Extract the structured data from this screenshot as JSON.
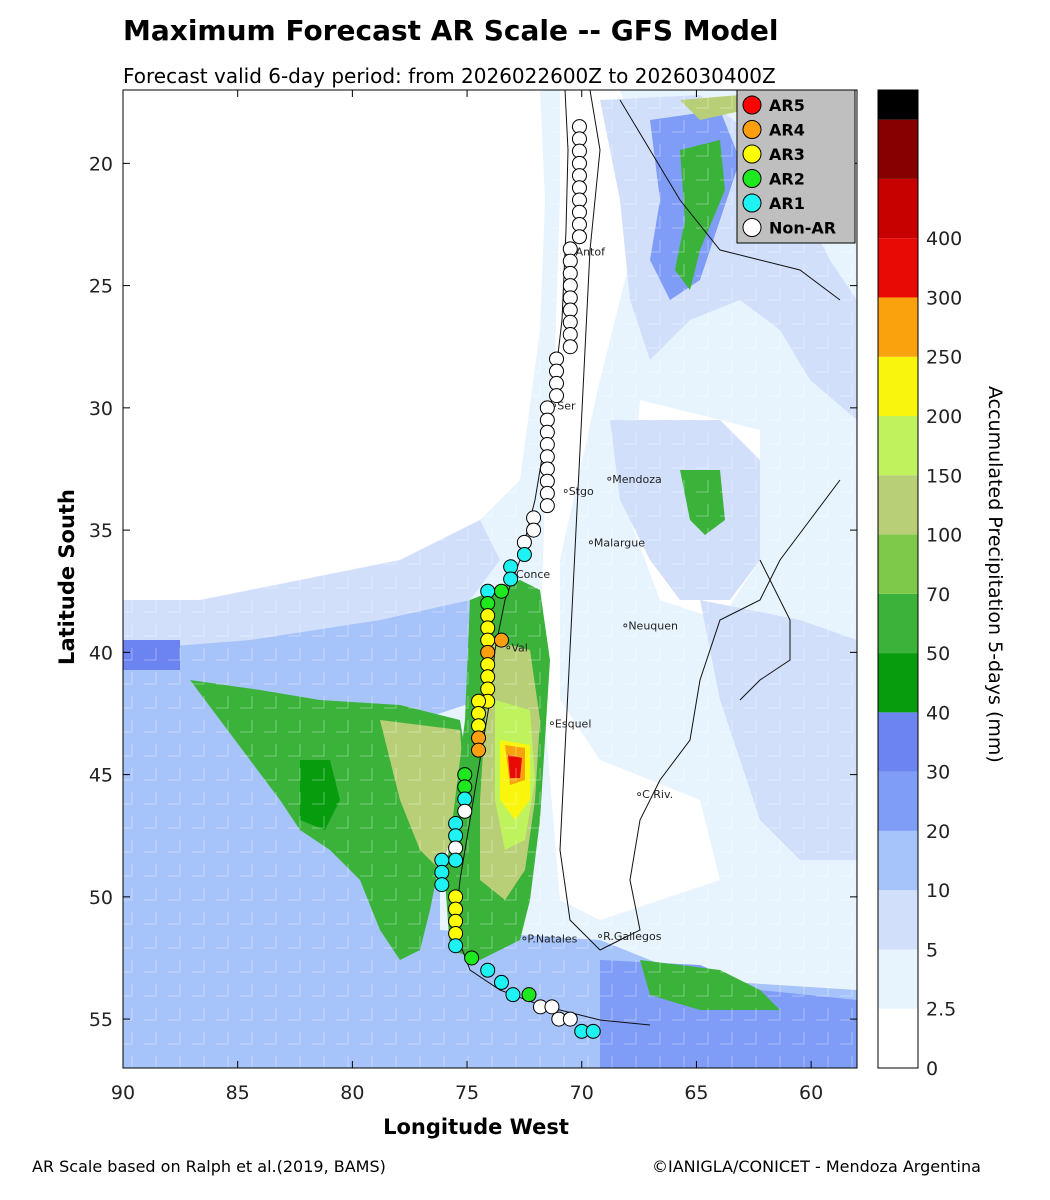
{
  "title": "Maximum Forecast AR Scale -- GFS Model",
  "subtitle": "Forecast valid 6-day period: from 2026022600Z to 2026030400Z",
  "axes": {
    "xlabel": "Longitude West",
    "ylabel": "Latitude South",
    "x_ticks": [
      "90",
      "85",
      "80",
      "75",
      "70",
      "65",
      "60"
    ],
    "y_ticks": [
      "20",
      "25",
      "30",
      "35",
      "40",
      "45",
      "50",
      "55"
    ],
    "xlim": [
      90,
      58
    ],
    "ylim": [
      17,
      57
    ]
  },
  "colorbar": {
    "label": "Accumulated Precipitation 5-days (mm)",
    "ticks": [
      "0",
      "2.5",
      "5",
      "10",
      "20",
      "30",
      "40",
      "50",
      "70",
      "100",
      "150",
      "200",
      "250",
      "300",
      "400"
    ],
    "colors": [
      "#ffffff",
      "#e8f4fd",
      "#d2dffb",
      "#a6c3fa",
      "#7f9cf7",
      "#6b84f0",
      "#069c0e",
      "#3bb33b",
      "#7ec84a",
      "#b9cf77",
      "#bef35d",
      "#f9f50c",
      "#f9a20d",
      "#e80a04",
      "#c70000",
      "#860000",
      "#000000"
    ]
  },
  "legend": {
    "items": [
      {
        "label": "AR5",
        "color": "#ff0000"
      },
      {
        "label": "AR4",
        "color": "#ff9f0f"
      },
      {
        "label": "AR3",
        "color": "#ffff00"
      },
      {
        "label": "AR2",
        "color": "#1ee81e"
      },
      {
        "label": "AR1",
        "color": "#1ef2f2"
      },
      {
        "label": "Non-AR",
        "color": "#ffffff"
      }
    ]
  },
  "cities": [
    {
      "name": "Antof",
      "lon": 70.4,
      "lat": 23.6
    },
    {
      "name": "Ser",
      "lon": 71.2,
      "lat": 29.9
    },
    {
      "name": "Mendoza",
      "lon": 68.8,
      "lat": 32.9
    },
    {
      "name": "Stgo",
      "lon": 70.7,
      "lat": 33.4
    },
    {
      "name": "Malargue",
      "lon": 69.6,
      "lat": 35.5
    },
    {
      "name": "Conce",
      "lon": 73.0,
      "lat": 36.8
    },
    {
      "name": "Neuquen",
      "lon": 68.1,
      "lat": 38.9
    },
    {
      "name": "Val",
      "lon": 73.2,
      "lat": 39.8
    },
    {
      "name": "Esquel",
      "lon": 71.3,
      "lat": 42.9
    },
    {
      "name": "C.Riv.",
      "lon": 67.5,
      "lat": 45.8
    },
    {
      "name": "P.Natales",
      "lon": 72.5,
      "lat": 51.7
    },
    {
      "name": "R.Gallegos",
      "lon": 69.2,
      "lat": 51.6
    }
  ],
  "chart_data": {
    "type": "scatter",
    "series_points": [
      {
        "lon": 70.1,
        "lat": 18.5,
        "cat": "Non-AR"
      },
      {
        "lon": 70.1,
        "lat": 19.0,
        "cat": "Non-AR"
      },
      {
        "lon": 70.1,
        "lat": 19.5,
        "cat": "Non-AR"
      },
      {
        "lon": 70.1,
        "lat": 20.0,
        "cat": "Non-AR"
      },
      {
        "lon": 70.1,
        "lat": 20.5,
        "cat": "Non-AR"
      },
      {
        "lon": 70.1,
        "lat": 21.0,
        "cat": "Non-AR"
      },
      {
        "lon": 70.1,
        "lat": 21.5,
        "cat": "Non-AR"
      },
      {
        "lon": 70.1,
        "lat": 22.0,
        "cat": "Non-AR"
      },
      {
        "lon": 70.1,
        "lat": 22.5,
        "cat": "Non-AR"
      },
      {
        "lon": 70.1,
        "lat": 23.0,
        "cat": "Non-AR"
      },
      {
        "lon": 70.5,
        "lat": 23.5,
        "cat": "Non-AR"
      },
      {
        "lon": 70.5,
        "lat": 24.0,
        "cat": "Non-AR"
      },
      {
        "lon": 70.5,
        "lat": 24.5,
        "cat": "Non-AR"
      },
      {
        "lon": 70.5,
        "lat": 25.0,
        "cat": "Non-AR"
      },
      {
        "lon": 70.5,
        "lat": 25.5,
        "cat": "Non-AR"
      },
      {
        "lon": 70.5,
        "lat": 26.0,
        "cat": "Non-AR"
      },
      {
        "lon": 70.5,
        "lat": 26.5,
        "cat": "Non-AR"
      },
      {
        "lon": 70.5,
        "lat": 27.0,
        "cat": "Non-AR"
      },
      {
        "lon": 70.5,
        "lat": 27.5,
        "cat": "Non-AR"
      },
      {
        "lon": 71.1,
        "lat": 28.0,
        "cat": "Non-AR"
      },
      {
        "lon": 71.1,
        "lat": 28.5,
        "cat": "Non-AR"
      },
      {
        "lon": 71.1,
        "lat": 29.0,
        "cat": "Non-AR"
      },
      {
        "lon": 71.1,
        "lat": 29.5,
        "cat": "Non-AR"
      },
      {
        "lon": 71.5,
        "lat": 30.0,
        "cat": "Non-AR"
      },
      {
        "lon": 71.5,
        "lat": 30.5,
        "cat": "Non-AR"
      },
      {
        "lon": 71.5,
        "lat": 31.0,
        "cat": "Non-AR"
      },
      {
        "lon": 71.5,
        "lat": 31.5,
        "cat": "Non-AR"
      },
      {
        "lon": 71.5,
        "lat": 32.0,
        "cat": "Non-AR"
      },
      {
        "lon": 71.5,
        "lat": 32.5,
        "cat": "Non-AR"
      },
      {
        "lon": 71.5,
        "lat": 33.0,
        "cat": "Non-AR"
      },
      {
        "lon": 71.5,
        "lat": 33.5,
        "cat": "Non-AR"
      },
      {
        "lon": 71.5,
        "lat": 34.0,
        "cat": "Non-AR"
      },
      {
        "lon": 72.1,
        "lat": 34.5,
        "cat": "Non-AR"
      },
      {
        "lon": 72.1,
        "lat": 35.0,
        "cat": "Non-AR"
      },
      {
        "lon": 72.5,
        "lat": 35.5,
        "cat": "Non-AR"
      },
      {
        "lon": 72.5,
        "lat": 36.0,
        "cat": "AR1"
      },
      {
        "lon": 73.1,
        "lat": 36.5,
        "cat": "AR1"
      },
      {
        "lon": 73.1,
        "lat": 37.0,
        "cat": "AR1"
      },
      {
        "lon": 73.5,
        "lat": 37.5,
        "cat": "AR2"
      },
      {
        "lon": 74.1,
        "lat": 37.5,
        "cat": "AR1"
      },
      {
        "lon": 74.1,
        "lat": 38.0,
        "cat": "AR2"
      },
      {
        "lon": 74.1,
        "lat": 38.5,
        "cat": "AR3"
      },
      {
        "lon": 74.1,
        "lat": 39.0,
        "cat": "AR3"
      },
      {
        "lon": 74.1,
        "lat": 39.5,
        "cat": "AR3"
      },
      {
        "lon": 73.5,
        "lat": 39.5,
        "cat": "AR4"
      },
      {
        "lon": 74.1,
        "lat": 40.0,
        "cat": "AR4"
      },
      {
        "lon": 74.1,
        "lat": 40.5,
        "cat": "AR3"
      },
      {
        "lon": 74.1,
        "lat": 41.0,
        "cat": "AR3"
      },
      {
        "lon": 74.1,
        "lat": 41.5,
        "cat": "AR3"
      },
      {
        "lon": 74.1,
        "lat": 42.0,
        "cat": "AR3"
      },
      {
        "lon": 74.5,
        "lat": 42.0,
        "cat": "AR3"
      },
      {
        "lon": 74.5,
        "lat": 42.5,
        "cat": "AR3"
      },
      {
        "lon": 74.5,
        "lat": 43.0,
        "cat": "AR3"
      },
      {
        "lon": 74.5,
        "lat": 43.5,
        "cat": "AR4"
      },
      {
        "lon": 74.5,
        "lat": 44.0,
        "cat": "AR4"
      },
      {
        "lon": 75.1,
        "lat": 45.0,
        "cat": "AR2"
      },
      {
        "lon": 75.1,
        "lat": 45.5,
        "cat": "AR2"
      },
      {
        "lon": 75.1,
        "lat": 46.0,
        "cat": "AR1"
      },
      {
        "lon": 75.1,
        "lat": 46.5,
        "cat": "Non-AR"
      },
      {
        "lon": 75.5,
        "lat": 47.0,
        "cat": "AR1"
      },
      {
        "lon": 75.5,
        "lat": 47.5,
        "cat": "AR1"
      },
      {
        "lon": 75.5,
        "lat": 48.0,
        "cat": "Non-AR"
      },
      {
        "lon": 75.5,
        "lat": 48.5,
        "cat": "AR1"
      },
      {
        "lon": 76.1,
        "lat": 48.5,
        "cat": "AR1"
      },
      {
        "lon": 76.1,
        "lat": 49.0,
        "cat": "AR1"
      },
      {
        "lon": 76.1,
        "lat": 49.5,
        "cat": "AR1"
      },
      {
        "lon": 75.5,
        "lat": 50.0,
        "cat": "AR3"
      },
      {
        "lon": 75.5,
        "lat": 50.5,
        "cat": "AR3"
      },
      {
        "lon": 75.5,
        "lat": 51.0,
        "cat": "AR3"
      },
      {
        "lon": 75.5,
        "lat": 51.5,
        "cat": "AR3"
      },
      {
        "lon": 75.5,
        "lat": 52.0,
        "cat": "AR1"
      },
      {
        "lon": 74.8,
        "lat": 52.5,
        "cat": "AR2"
      },
      {
        "lon": 74.1,
        "lat": 53.0,
        "cat": "AR1"
      },
      {
        "lon": 73.5,
        "lat": 53.5,
        "cat": "AR1"
      },
      {
        "lon": 73.0,
        "lat": 54.0,
        "cat": "AR1"
      },
      {
        "lon": 72.3,
        "lat": 54.0,
        "cat": "AR2"
      },
      {
        "lon": 71.8,
        "lat": 54.5,
        "cat": "Non-AR"
      },
      {
        "lon": 71.3,
        "lat": 54.5,
        "cat": "Non-AR"
      },
      {
        "lon": 71.0,
        "lat": 55.0,
        "cat": "Non-AR"
      },
      {
        "lon": 70.5,
        "lat": 55.0,
        "cat": "Non-AR"
      },
      {
        "lon": 70.0,
        "lat": 55.5,
        "cat": "AR1"
      },
      {
        "lon": 69.5,
        "lat": 55.5,
        "cat": "AR1"
      }
    ]
  }
}
